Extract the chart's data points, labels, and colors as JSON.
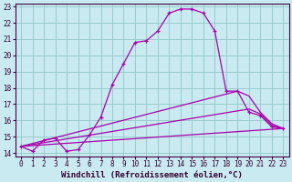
{
  "xlabel": "Windchill (Refroidissement éolien,°C)",
  "bg_color": "#c8eaf0",
  "line_color": "#aa00aa",
  "grid_color": "#99cccc",
  "xlim": [
    -0.5,
    23.5
  ],
  "ylim": [
    13.8,
    23.2
  ],
  "xticks": [
    0,
    1,
    2,
    3,
    4,
    5,
    6,
    7,
    8,
    9,
    10,
    11,
    12,
    13,
    14,
    15,
    16,
    17,
    18,
    19,
    20,
    21,
    22,
    23
  ],
  "yticks": [
    14,
    15,
    16,
    17,
    18,
    19,
    20,
    21,
    22,
    23
  ],
  "line_main": {
    "x": [
      0,
      1,
      2,
      3,
      4,
      5,
      6,
      7,
      8,
      9,
      10,
      11,
      12,
      13,
      14,
      15,
      16,
      17,
      18,
      19,
      20,
      21,
      22,
      23
    ],
    "y": [
      14.4,
      14.1,
      14.8,
      14.9,
      14.1,
      14.2,
      15.1,
      16.2,
      18.2,
      19.5,
      20.8,
      20.9,
      21.5,
      22.6,
      22.85,
      22.85,
      22.6,
      21.5,
      17.8,
      17.8,
      16.5,
      16.3,
      15.6,
      15.5
    ]
  },
  "line2": {
    "x": [
      0,
      23
    ],
    "y": [
      14.4,
      15.5
    ]
  },
  "line3": {
    "x": [
      0,
      20,
      21,
      22,
      23
    ],
    "y": [
      14.4,
      16.7,
      16.4,
      15.7,
      15.5
    ]
  },
  "line4": {
    "x": [
      0,
      19,
      20,
      21,
      22,
      23
    ],
    "y": [
      14.4,
      17.8,
      17.5,
      16.5,
      15.8,
      15.5
    ]
  },
  "tick_fontsize": 5.5,
  "axis_fontsize": 6.5
}
